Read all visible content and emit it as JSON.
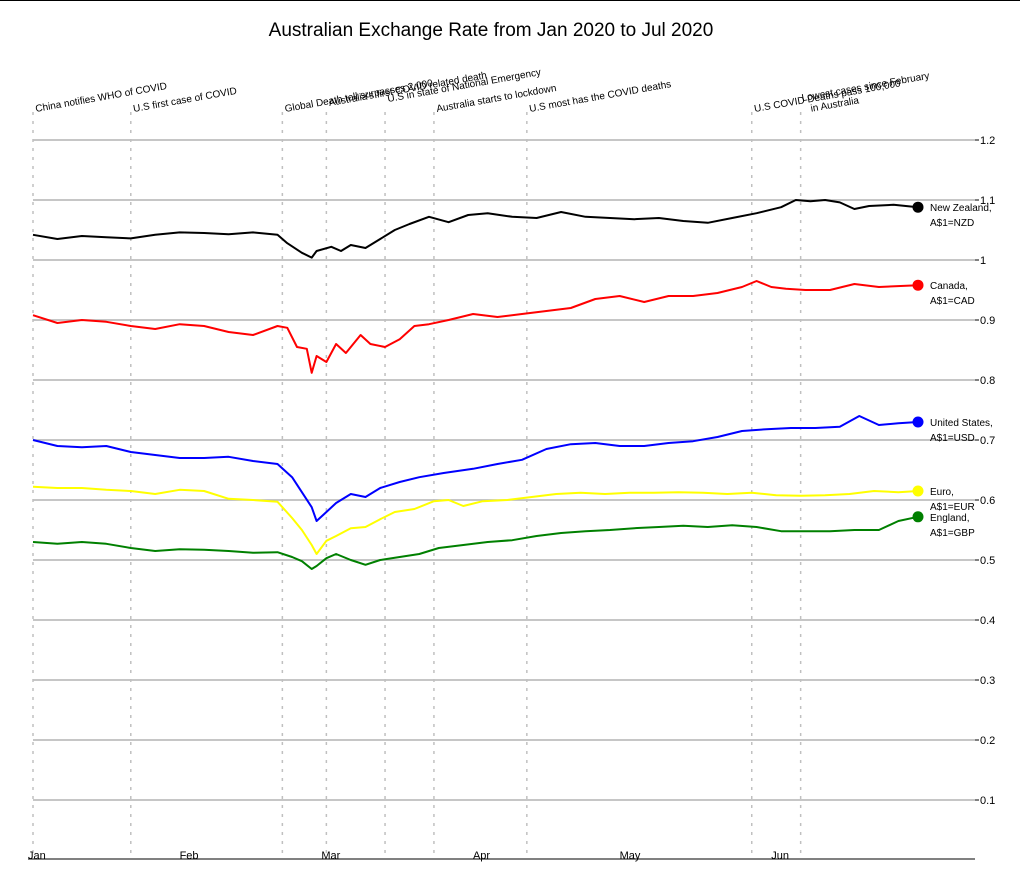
{
  "chart_data": {
    "type": "line",
    "title": "Australian Exchange Rate from Jan 2020 to Jul 2020",
    "xlabel": "",
    "ylabel": "",
    "x_range": [
      "2020-01-01",
      "2020-06-30"
    ],
    "ylim": [
      0.05,
      1.25
    ],
    "y_ticks": [
      {
        "value": 1.2,
        "label": "1.2"
      },
      {
        "value": 1.1,
        "label": "1.1"
      },
      {
        "value": 1.0,
        "label": "1"
      },
      {
        "value": 0.9,
        "label": "0.9"
      },
      {
        "value": 0.8,
        "label": "0.8"
      },
      {
        "value": 0.7,
        "label": "0.7"
      },
      {
        "value": 0.6,
        "label": "0.6"
      },
      {
        "value": 0.5,
        "label": "0.5"
      },
      {
        "value": 0.4,
        "label": "0.4"
      },
      {
        "value": 0.3,
        "label": "0.3"
      },
      {
        "value": 0.2,
        "label": "0.2"
      },
      {
        "value": 0.1,
        "label": "0.1"
      }
    ],
    "x_ticks": [
      {
        "date": "2020-01-01",
        "label": "Jan"
      },
      {
        "date": "2020-02-01",
        "label": "Feb"
      },
      {
        "date": "2020-03-01",
        "label": "Mar"
      },
      {
        "date": "2020-04-01",
        "label": "Apr"
      },
      {
        "date": "2020-05-01",
        "label": "May"
      },
      {
        "date": "2020-06-01",
        "label": "Jun"
      }
    ],
    "grid": "horizontal",
    "legend": "right end labels",
    "annotations": [
      {
        "date": "2020-01-01",
        "text": "China notifies WHO of COVID"
      },
      {
        "date": "2020-01-21",
        "text": "U.S first case of COVID"
      },
      {
        "date": "2020-02-21",
        "text": "Global Death toll surpasses 2,000"
      },
      {
        "date": "2020-03-01",
        "text": "Australia's first COVID related death"
      },
      {
        "date": "2020-03-13",
        "text": "U.S in state of National Emergency"
      },
      {
        "date": "2020-03-23",
        "text": "Australia starts to lockdown"
      },
      {
        "date": "2020-04-11",
        "text": "U.S most has the COVID deaths"
      },
      {
        "date": "2020-05-27",
        "text": "U.S COVID Deaths pass 100,000"
      },
      {
        "date": "2020-06-06",
        "text": "Lowest cases since February in Australia"
      }
    ],
    "series": [
      {
        "name": "New Zealand, A$1=NZD",
        "color": "#000000",
        "points": [
          [
            "2020-01-01",
            1.042
          ],
          [
            "2020-01-06",
            1.035
          ],
          [
            "2020-01-11",
            1.04
          ],
          [
            "2020-01-16",
            1.038
          ],
          [
            "2020-01-21",
            1.036
          ],
          [
            "2020-01-26",
            1.042
          ],
          [
            "2020-01-31",
            1.046
          ],
          [
            "2020-02-05",
            1.045
          ],
          [
            "2020-02-10",
            1.043
          ],
          [
            "2020-02-15",
            1.046
          ],
          [
            "2020-02-20",
            1.042
          ],
          [
            "2020-02-22",
            1.028
          ],
          [
            "2020-02-25",
            1.012
          ],
          [
            "2020-02-27",
            1.004
          ],
          [
            "2020-02-28",
            1.015
          ],
          [
            "2020-03-02",
            1.022
          ],
          [
            "2020-03-04",
            1.015
          ],
          [
            "2020-03-06",
            1.025
          ],
          [
            "2020-03-09",
            1.02
          ],
          [
            "2020-03-12",
            1.035
          ],
          [
            "2020-03-15",
            1.05
          ],
          [
            "2020-03-18",
            1.06
          ],
          [
            "2020-03-22",
            1.072
          ],
          [
            "2020-03-26",
            1.063
          ],
          [
            "2020-03-30",
            1.075
          ],
          [
            "2020-04-03",
            1.078
          ],
          [
            "2020-04-08",
            1.072
          ],
          [
            "2020-04-13",
            1.07
          ],
          [
            "2020-04-18",
            1.08
          ],
          [
            "2020-04-23",
            1.072
          ],
          [
            "2020-04-28",
            1.07
          ],
          [
            "2020-05-03",
            1.068
          ],
          [
            "2020-05-08",
            1.07
          ],
          [
            "2020-05-13",
            1.065
          ],
          [
            "2020-05-18",
            1.062
          ],
          [
            "2020-05-23",
            1.07
          ],
          [
            "2020-05-28",
            1.078
          ],
          [
            "2020-06-02",
            1.088
          ],
          [
            "2020-06-05",
            1.1
          ],
          [
            "2020-06-08",
            1.098
          ],
          [
            "2020-06-11",
            1.1
          ],
          [
            "2020-06-14",
            1.096
          ],
          [
            "2020-06-17",
            1.085
          ],
          [
            "2020-06-20",
            1.09
          ],
          [
            "2020-06-25",
            1.092
          ],
          [
            "2020-06-30",
            1.088
          ]
        ]
      },
      {
        "name": "Canada, A$1=CAD",
        "color": "#ff0000",
        "points": [
          [
            "2020-01-01",
            0.908
          ],
          [
            "2020-01-06",
            0.895
          ],
          [
            "2020-01-11",
            0.9
          ],
          [
            "2020-01-16",
            0.897
          ],
          [
            "2020-01-21",
            0.89
          ],
          [
            "2020-01-26",
            0.885
          ],
          [
            "2020-01-31",
            0.893
          ],
          [
            "2020-02-05",
            0.89
          ],
          [
            "2020-02-10",
            0.88
          ],
          [
            "2020-02-15",
            0.875
          ],
          [
            "2020-02-20",
            0.89
          ],
          [
            "2020-02-22",
            0.887
          ],
          [
            "2020-02-24",
            0.855
          ],
          [
            "2020-02-26",
            0.852
          ],
          [
            "2020-02-27",
            0.812
          ],
          [
            "2020-02-28",
            0.84
          ],
          [
            "2020-03-01",
            0.83
          ],
          [
            "2020-03-03",
            0.86
          ],
          [
            "2020-03-05",
            0.845
          ],
          [
            "2020-03-08",
            0.875
          ],
          [
            "2020-03-10",
            0.86
          ],
          [
            "2020-03-13",
            0.855
          ],
          [
            "2020-03-16",
            0.868
          ],
          [
            "2020-03-19",
            0.89
          ],
          [
            "2020-03-22",
            0.893
          ],
          [
            "2020-03-26",
            0.9
          ],
          [
            "2020-03-31",
            0.91
          ],
          [
            "2020-04-05",
            0.905
          ],
          [
            "2020-04-10",
            0.91
          ],
          [
            "2020-04-15",
            0.915
          ],
          [
            "2020-04-20",
            0.92
          ],
          [
            "2020-04-25",
            0.935
          ],
          [
            "2020-04-30",
            0.94
          ],
          [
            "2020-05-05",
            0.93
          ],
          [
            "2020-05-10",
            0.94
          ],
          [
            "2020-05-15",
            0.94
          ],
          [
            "2020-05-20",
            0.945
          ],
          [
            "2020-05-25",
            0.955
          ],
          [
            "2020-05-28",
            0.965
          ],
          [
            "2020-05-31",
            0.955
          ],
          [
            "2020-06-03",
            0.952
          ],
          [
            "2020-06-07",
            0.95
          ],
          [
            "2020-06-12",
            0.95
          ],
          [
            "2020-06-17",
            0.96
          ],
          [
            "2020-06-22",
            0.955
          ],
          [
            "2020-06-30",
            0.958
          ]
        ]
      },
      {
        "name": "United States, A$1=USD",
        "color": "#0000ff",
        "points": [
          [
            "2020-01-01",
            0.7
          ],
          [
            "2020-01-06",
            0.69
          ],
          [
            "2020-01-11",
            0.688
          ],
          [
            "2020-01-16",
            0.69
          ],
          [
            "2020-01-21",
            0.68
          ],
          [
            "2020-01-26",
            0.675
          ],
          [
            "2020-01-31",
            0.67
          ],
          [
            "2020-02-05",
            0.67
          ],
          [
            "2020-02-10",
            0.672
          ],
          [
            "2020-02-15",
            0.665
          ],
          [
            "2020-02-20",
            0.66
          ],
          [
            "2020-02-23",
            0.638
          ],
          [
            "2020-02-25",
            0.613
          ],
          [
            "2020-02-27",
            0.588
          ],
          [
            "2020-02-28",
            0.565
          ],
          [
            "2020-03-01",
            0.58
          ],
          [
            "2020-03-03",
            0.595
          ],
          [
            "2020-03-06",
            0.61
          ],
          [
            "2020-03-09",
            0.605
          ],
          [
            "2020-03-12",
            0.62
          ],
          [
            "2020-03-16",
            0.63
          ],
          [
            "2020-03-20",
            0.638
          ],
          [
            "2020-03-25",
            0.645
          ],
          [
            "2020-03-31",
            0.652
          ],
          [
            "2020-04-05",
            0.66
          ],
          [
            "2020-04-10",
            0.667
          ],
          [
            "2020-04-15",
            0.685
          ],
          [
            "2020-04-20",
            0.693
          ],
          [
            "2020-04-25",
            0.695
          ],
          [
            "2020-04-30",
            0.69
          ],
          [
            "2020-05-05",
            0.69
          ],
          [
            "2020-05-10",
            0.695
          ],
          [
            "2020-05-15",
            0.698
          ],
          [
            "2020-05-20",
            0.705
          ],
          [
            "2020-05-25",
            0.715
          ],
          [
            "2020-05-30",
            0.718
          ],
          [
            "2020-06-04",
            0.72
          ],
          [
            "2020-06-09",
            0.72
          ],
          [
            "2020-06-14",
            0.722
          ],
          [
            "2020-06-18",
            0.74
          ],
          [
            "2020-06-22",
            0.725
          ],
          [
            "2020-06-26",
            0.728
          ],
          [
            "2020-06-30",
            0.73
          ]
        ]
      },
      {
        "name": "Euro, A$1=EUR",
        "color": "#ffff00",
        "points": [
          [
            "2020-01-01",
            0.622
          ],
          [
            "2020-01-06",
            0.62
          ],
          [
            "2020-01-11",
            0.62
          ],
          [
            "2020-01-16",
            0.617
          ],
          [
            "2020-01-21",
            0.615
          ],
          [
            "2020-01-26",
            0.61
          ],
          [
            "2020-01-31",
            0.617
          ],
          [
            "2020-02-05",
            0.615
          ],
          [
            "2020-02-10",
            0.602
          ],
          [
            "2020-02-15",
            0.6
          ],
          [
            "2020-02-20",
            0.597
          ],
          [
            "2020-02-23",
            0.57
          ],
          [
            "2020-02-25",
            0.55
          ],
          [
            "2020-02-27",
            0.525
          ],
          [
            "2020-02-28",
            0.51
          ],
          [
            "2020-03-01",
            0.532
          ],
          [
            "2020-03-03",
            0.54
          ],
          [
            "2020-03-06",
            0.553
          ],
          [
            "2020-03-09",
            0.555
          ],
          [
            "2020-03-12",
            0.568
          ],
          [
            "2020-03-15",
            0.58
          ],
          [
            "2020-03-19",
            0.585
          ],
          [
            "2020-03-23",
            0.598
          ],
          [
            "2020-03-26",
            0.6
          ],
          [
            "2020-03-29",
            0.59
          ],
          [
            "2020-04-02",
            0.598
          ],
          [
            "2020-04-07",
            0.6
          ],
          [
            "2020-04-12",
            0.605
          ],
          [
            "2020-04-17",
            0.61
          ],
          [
            "2020-04-22",
            0.612
          ],
          [
            "2020-04-27",
            0.61
          ],
          [
            "2020-05-02",
            0.612
          ],
          [
            "2020-05-07",
            0.612
          ],
          [
            "2020-05-12",
            0.613
          ],
          [
            "2020-05-17",
            0.612
          ],
          [
            "2020-05-22",
            0.61
          ],
          [
            "2020-05-27",
            0.612
          ],
          [
            "2020-06-01",
            0.608
          ],
          [
            "2020-06-06",
            0.607
          ],
          [
            "2020-06-11",
            0.608
          ],
          [
            "2020-06-16",
            0.61
          ],
          [
            "2020-06-21",
            0.615
          ],
          [
            "2020-06-26",
            0.613
          ],
          [
            "2020-06-30",
            0.615
          ]
        ]
      },
      {
        "name": "England, A$1=GBP",
        "color": "#008000",
        "points": [
          [
            "2020-01-01",
            0.53
          ],
          [
            "2020-01-06",
            0.527
          ],
          [
            "2020-01-11",
            0.53
          ],
          [
            "2020-01-16",
            0.527
          ],
          [
            "2020-01-21",
            0.52
          ],
          [
            "2020-01-26",
            0.515
          ],
          [
            "2020-01-31",
            0.518
          ],
          [
            "2020-02-05",
            0.517
          ],
          [
            "2020-02-10",
            0.515
          ],
          [
            "2020-02-15",
            0.512
          ],
          [
            "2020-02-20",
            0.513
          ],
          [
            "2020-02-23",
            0.505
          ],
          [
            "2020-02-25",
            0.498
          ],
          [
            "2020-02-27",
            0.485
          ],
          [
            "2020-02-28",
            0.49
          ],
          [
            "2020-03-01",
            0.503
          ],
          [
            "2020-03-03",
            0.51
          ],
          [
            "2020-03-06",
            0.5
          ],
          [
            "2020-03-09",
            0.492
          ],
          [
            "2020-03-12",
            0.5
          ],
          [
            "2020-03-16",
            0.505
          ],
          [
            "2020-03-20",
            0.51
          ],
          [
            "2020-03-24",
            0.52
          ],
          [
            "2020-03-29",
            0.525
          ],
          [
            "2020-04-03",
            0.53
          ],
          [
            "2020-04-08",
            0.533
          ],
          [
            "2020-04-13",
            0.54
          ],
          [
            "2020-04-18",
            0.545
          ],
          [
            "2020-04-23",
            0.548
          ],
          [
            "2020-04-28",
            0.55
          ],
          [
            "2020-05-03",
            0.553
          ],
          [
            "2020-05-08",
            0.555
          ],
          [
            "2020-05-13",
            0.557
          ],
          [
            "2020-05-18",
            0.555
          ],
          [
            "2020-05-23",
            0.558
          ],
          [
            "2020-05-28",
            0.555
          ],
          [
            "2020-06-02",
            0.548
          ],
          [
            "2020-06-07",
            0.548
          ],
          [
            "2020-06-12",
            0.548
          ],
          [
            "2020-06-17",
            0.55
          ],
          [
            "2020-06-22",
            0.55
          ],
          [
            "2020-06-26",
            0.565
          ],
          [
            "2020-06-30",
            0.572
          ]
        ]
      }
    ]
  }
}
